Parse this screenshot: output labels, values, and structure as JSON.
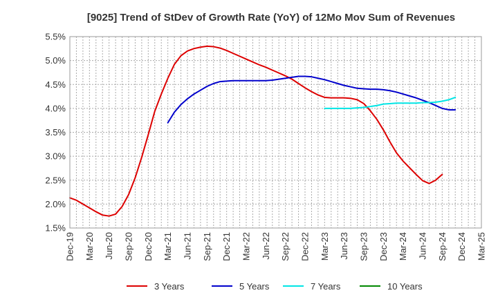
{
  "chart_data": {
    "type": "line",
    "title": "[9025]  Trend of StDev of Growth Rate (YoY) of 12Mo Mov Sum of Revenues",
    "xlabel": "",
    "ylabel": "",
    "ylim": [
      1.5,
      5.5
    ],
    "y_ticks": [
      1.5,
      2.0,
      2.5,
      3.0,
      3.5,
      4.0,
      4.5,
      5.0,
      5.5
    ],
    "y_tick_labels": [
      "1.5%",
      "2.0%",
      "2.5%",
      "3.0%",
      "3.5%",
      "4.0%",
      "4.5%",
      "5.0%",
      "5.5%"
    ],
    "x_start": "Dec-19",
    "x_tick_labels": [
      "Dec-19",
      "Mar-20",
      "Jun-20",
      "Sep-20",
      "Dec-20",
      "Mar-21",
      "Jun-21",
      "Sep-21",
      "Dec-21",
      "Mar-22",
      "Jun-22",
      "Sep-22",
      "Dec-22",
      "Mar-23",
      "Jun-23",
      "Sep-23",
      "Dec-23",
      "Mar-24",
      "Jun-24",
      "Sep-24",
      "Dec-24",
      "Mar-25"
    ],
    "grid": true,
    "legend_position": "bottom",
    "series": [
      {
        "name": "3 Years",
        "color": "#dd0000",
        "start_index": 0,
        "values": [
          2.13,
          2.08,
          2.0,
          1.92,
          1.84,
          1.77,
          1.75,
          1.79,
          1.95,
          2.2,
          2.55,
          2.98,
          3.45,
          3.94,
          4.3,
          4.63,
          4.92,
          5.1,
          5.2,
          5.25,
          5.28,
          5.3,
          5.29,
          5.26,
          5.21,
          5.15,
          5.09,
          5.03,
          4.97,
          4.91,
          4.86,
          4.8,
          4.74,
          4.68,
          4.61,
          4.52,
          4.43,
          4.35,
          4.28,
          4.23,
          4.22,
          4.22,
          4.22,
          4.21,
          4.18,
          4.1,
          3.95,
          3.77,
          3.55,
          3.3,
          3.07,
          2.9,
          2.76,
          2.62,
          2.49,
          2.43,
          2.5,
          2.62
        ]
      },
      {
        "name": "5 Years",
        "color": "#0000cc",
        "start_index": 15,
        "values": [
          3.7,
          3.92,
          4.08,
          4.2,
          4.3,
          4.38,
          4.46,
          4.52,
          4.56,
          4.57,
          4.58,
          4.58,
          4.58,
          4.58,
          4.58,
          4.58,
          4.59,
          4.61,
          4.63,
          4.65,
          4.67,
          4.67,
          4.66,
          4.63,
          4.6,
          4.56,
          4.52,
          4.48,
          4.45,
          4.42,
          4.41,
          4.4,
          4.4,
          4.39,
          4.37,
          4.34,
          4.3,
          4.26,
          4.22,
          4.17,
          4.12,
          4.06,
          4.0,
          3.97,
          3.97
        ]
      },
      {
        "name": "7 Years",
        "color": "#00e5e5",
        "start_index": 39,
        "values": [
          4.0,
          4.0,
          4.0,
          4.0,
          4.0,
          4.01,
          4.02,
          4.04,
          4.06,
          4.09,
          4.1,
          4.11,
          4.11,
          4.11,
          4.11,
          4.12,
          4.12,
          4.13,
          4.15,
          4.18,
          4.23
        ]
      },
      {
        "name": "10 Years",
        "color": "#008800",
        "start_index": 0,
        "values": []
      }
    ]
  }
}
